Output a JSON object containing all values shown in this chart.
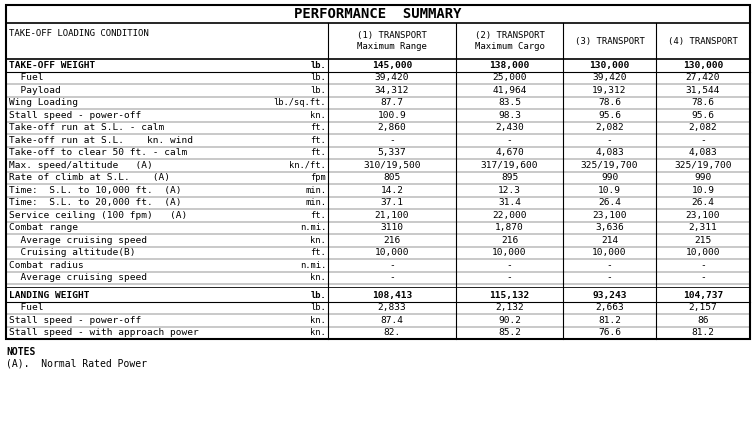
{
  "title": "PERFORMANCE  SUMMARY",
  "col_headers": [
    [
      "(1) TRANSPORT",
      "Maximum Range"
    ],
    [
      "(2) TRANSPORT",
      "Maximum Cargo"
    ],
    [
      "(3) TRANSPORT",
      ""
    ],
    [
      "(4) TRANSPORT",
      ""
    ]
  ],
  "row_label_header": "TAKE-OFF LOADING CONDITION",
  "rows": [
    {
      "label": "TAKE-OFF WEIGHT",
      "unit": "lb.",
      "vals": [
        "145,000",
        "138,000",
        "130,000",
        "130,000"
      ],
      "bold": true,
      "separator_before": true
    },
    {
      "label": "  Fuel",
      "unit": "lb.",
      "vals": [
        "39,420",
        "25,000",
        "39,420",
        "27,420"
      ],
      "bold": false
    },
    {
      "label": "  Payload",
      "unit": "lb.",
      "vals": [
        "34,312",
        "41,964",
        "19,312",
        "31,544"
      ],
      "bold": false
    },
    {
      "label": "Wing Loading",
      "unit": "lb./sq.ft.",
      "vals": [
        "87.7",
        "83.5",
        "78.6",
        "78.6"
      ],
      "bold": false
    },
    {
      "label": "Stall speed - power-off",
      "unit": "kn.",
      "vals": [
        "100.9",
        "98.3",
        "95.6",
        "95.6"
      ],
      "bold": false
    },
    {
      "label": "Take-off run at S.L. - calm",
      "unit": "ft.",
      "vals": [
        "2,860",
        "2,430",
        "2,082",
        "2,082"
      ],
      "bold": false
    },
    {
      "label": "Take-off run at S.L.    kn. wind",
      "unit": "ft.",
      "vals": [
        "-",
        "-",
        "-",
        "-"
      ],
      "bold": false
    },
    {
      "label": "Take-off to clear 50 ft. - calm",
      "unit": "ft.",
      "vals": [
        "5,337",
        "4,670",
        "4,083",
        "4,083"
      ],
      "bold": false
    },
    {
      "label": "Max. speed/altitude   (A)",
      "unit": "kn./ft.",
      "vals": [
        "310/19,500",
        "317/19,600",
        "325/19,700",
        "325/19,700"
      ],
      "bold": false
    },
    {
      "label": "Rate of climb at S.L.    (A)",
      "unit": "fpm",
      "vals": [
        "805",
        "895",
        "990",
        "990"
      ],
      "bold": false
    },
    {
      "label": "Time:  S.L. to 10,000 ft.  (A)",
      "unit": "min.",
      "vals": [
        "14.2",
        "12.3",
        "10.9",
        "10.9"
      ],
      "bold": false
    },
    {
      "label": "Time:  S.L. to 20,000 ft.  (A)",
      "unit": "min.",
      "vals": [
        "37.1",
        "31.4",
        "26.4",
        "26.4"
      ],
      "bold": false
    },
    {
      "label": "Service ceiling (100 fpm)   (A)",
      "unit": "ft.",
      "vals": [
        "21,100",
        "22,000",
        "23,100",
        "23,100"
      ],
      "bold": false
    },
    {
      "label": "Combat range",
      "unit": "n.mi.",
      "vals": [
        "3110",
        "1,870",
        "3,636",
        "2,311"
      ],
      "bold": false
    },
    {
      "label": "  Average cruising speed",
      "unit": "kn.",
      "vals": [
        "216",
        "216",
        "214",
        "215"
      ],
      "bold": false
    },
    {
      "label": "  Cruising altitude(B)",
      "unit": "ft.",
      "vals": [
        "10,000",
        "10,000",
        "10,000",
        "10,000"
      ],
      "bold": false
    },
    {
      "label": "Combat radius",
      "unit": "n.mi.",
      "vals": [
        "-",
        "-",
        "-",
        "-"
      ],
      "bold": false
    },
    {
      "label": "  Average cruising speed",
      "unit": "kn.",
      "vals": [
        "-",
        "-",
        "-",
        "-"
      ],
      "bold": false
    },
    {
      "label": "LANDING WEIGHT",
      "unit": "lb.",
      "vals": [
        "108,413",
        "115,132",
        "93,243",
        "104,737"
      ],
      "bold": true,
      "separator_before": true
    },
    {
      "label": "  Fuel",
      "unit": "lb.",
      "vals": [
        "2,833",
        "2,132",
        "2,663",
        "2,157"
      ],
      "bold": false
    },
    {
      "label": "Stall speed - power-off",
      "unit": "kn.",
      "vals": [
        "87.4",
        "90.2",
        "81.2",
        "86"
      ],
      "bold": false
    },
    {
      "label": "Stall speed - with approach power",
      "unit": "kn.",
      "vals": [
        "82.",
        "85.2",
        "76.6",
        "81.2"
      ],
      "bold": false
    }
  ],
  "notes": [
    "NOTES",
    "(A).  Normal Rated Power"
  ],
  "bg_color": "#ffffff",
  "border_color": "#000000",
  "text_color": "#000000",
  "font_size": 6.8,
  "title_font_size": 10.0,
  "header_font_size": 6.5
}
